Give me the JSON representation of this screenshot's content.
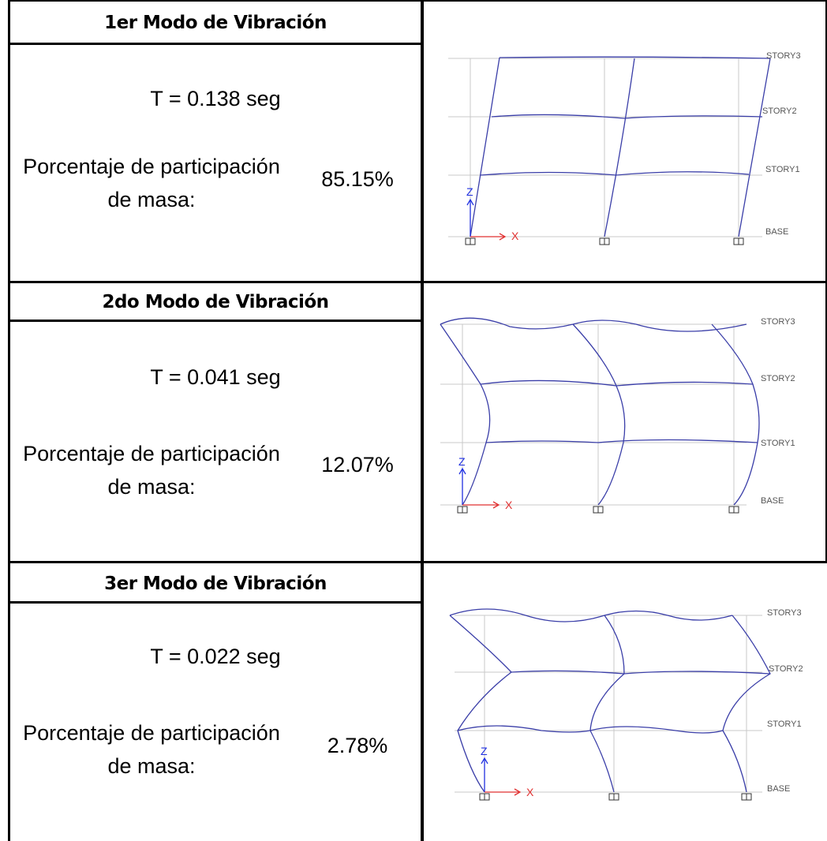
{
  "modes": [
    {
      "title": "1er Modo de Vibración",
      "period": "T = 0.138 seg",
      "participation_label": "Porcentaje de participación de masa:",
      "participation_value": "85.15%",
      "participation_fraction": 0.8515,
      "story_labels": [
        "STORY3",
        "STORY2",
        "STORY1",
        "BASE"
      ],
      "axis_z": "Z",
      "axis_x": "X"
    },
    {
      "title": "2do Modo de Vibración",
      "period": "T = 0.041 seg",
      "participation_label": "Porcentaje de participación de masa:",
      "participation_value": "12.07%",
      "participation_fraction": 0.1207,
      "story_labels": [
        "STORY3",
        "STORY2",
        "STORY1",
        "BASE"
      ],
      "axis_z": "Z",
      "axis_x": "X"
    },
    {
      "title": "3er Modo de Vibración",
      "period": "T = 0.022 seg",
      "participation_label": "Porcentaje de participación de masa:",
      "participation_value": "2.78%",
      "participation_fraction": 0.0278,
      "story_labels": [
        "STORY3",
        "STORY2",
        "STORY1",
        "BASE"
      ],
      "axis_z": "Z",
      "axis_x": "X"
    }
  ],
  "colors": {
    "border": "#000000",
    "deformed_shape": "#3a3ea8",
    "grid": "#c8c8c8",
    "axis_z": "#2030e0",
    "axis_x": "#e03030"
  }
}
